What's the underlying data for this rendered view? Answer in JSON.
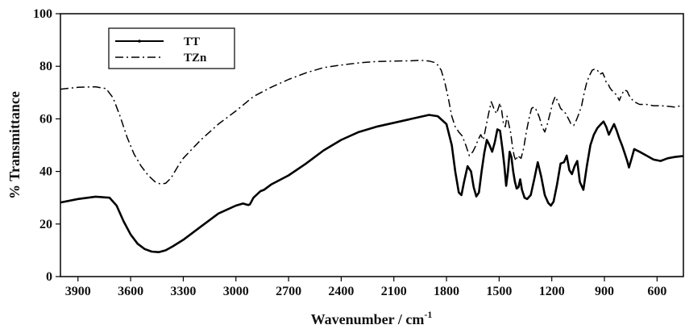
{
  "chart_data": {
    "type": "line",
    "title": "",
    "xlabel": "Wavenumber / cm",
    "xlabel_superscript": "-1",
    "ylabel": "% Transmittance",
    "xlim": [
      4000,
      450
    ],
    "ylim": [
      0,
      100
    ],
    "x_reversed": true,
    "grid": false,
    "legend_position": "top-left",
    "x_ticks": [
      3900,
      3600,
      3300,
      3000,
      2700,
      2400,
      2100,
      1800,
      1500,
      1200,
      900,
      600
    ],
    "y_ticks": [
      0,
      20,
      40,
      60,
      80,
      100
    ],
    "series": [
      {
        "name": "TT",
        "line_style": "solid",
        "color": "#000000",
        "x": [
          4000,
          3900,
          3800,
          3720,
          3680,
          3640,
          3600,
          3560,
          3520,
          3480,
          3440,
          3400,
          3360,
          3300,
          3200,
          3100,
          3000,
          2960,
          2930,
          2920,
          2900,
          2860,
          2840,
          2800,
          2700,
          2600,
          2500,
          2400,
          2300,
          2200,
          2100,
          2000,
          1900,
          1850,
          1800,
          1770,
          1750,
          1730,
          1715,
          1700,
          1680,
          1660,
          1645,
          1630,
          1615,
          1600,
          1585,
          1570,
          1555,
          1540,
          1525,
          1510,
          1495,
          1480,
          1470,
          1460,
          1450,
          1440,
          1430,
          1420,
          1410,
          1400,
          1390,
          1380,
          1370,
          1355,
          1340,
          1320,
          1300,
          1280,
          1260,
          1240,
          1220,
          1205,
          1190,
          1170,
          1150,
          1130,
          1115,
          1100,
          1085,
          1070,
          1055,
          1040,
          1020,
          1000,
          980,
          960,
          940,
          920,
          905,
          890,
          875,
          860,
          845,
          830,
          815,
          800,
          785,
          770,
          760,
          745,
          730,
          700,
          660,
          620,
          580,
          540,
          500,
          460,
          450
        ],
        "y": [
          28.2,
          29.5,
          30.4,
          30.0,
          27.0,
          21.0,
          16.0,
          12.5,
          10.5,
          9.5,
          9.3,
          10.0,
          11.5,
          14.0,
          19.0,
          24.0,
          27.0,
          27.8,
          27.2,
          27.5,
          30.0,
          32.5,
          33.0,
          35.0,
          38.5,
          43.0,
          48.0,
          52.0,
          55.0,
          57.0,
          58.5,
          60.0,
          61.5,
          61.0,
          58.0,
          50.0,
          40.0,
          32.0,
          31.0,
          36.0,
          42.0,
          40.0,
          34.0,
          30.5,
          32.0,
          40.0,
          47.0,
          52.0,
          50.0,
          47.5,
          51.0,
          56.0,
          55.5,
          48.0,
          42.0,
          34.5,
          40.0,
          47.5,
          45.5,
          40.0,
          36.0,
          33.5,
          34.0,
          37.0,
          33.0,
          30.0,
          29.5,
          31.0,
          37.0,
          43.5,
          38.0,
          31.0,
          28.0,
          27.0,
          28.5,
          35.0,
          43.0,
          43.5,
          46.0,
          40.5,
          39.0,
          42.0,
          44.0,
          36.0,
          33.0,
          42.0,
          50.0,
          54.0,
          56.5,
          58.0,
          59.0,
          57.0,
          54.0,
          56.0,
          58.0,
          55.5,
          52.5,
          50.0,
          47.0,
          44.0,
          41.5,
          45.0,
          48.5,
          47.5,
          46.0,
          44.5,
          44.0,
          45.0,
          45.5,
          45.8,
          45.8
        ]
      },
      {
        "name": "TZn",
        "line_style": "dash-dot",
        "color": "#000000",
        "x": [
          4000,
          3900,
          3800,
          3740,
          3700,
          3660,
          3620,
          3580,
          3540,
          3500,
          3460,
          3430,
          3400,
          3370,
          3330,
          3300,
          3200,
          3100,
          3000,
          2900,
          2800,
          2700,
          2600,
          2500,
          2400,
          2300,
          2200,
          2100,
          2000,
          1950,
          1900,
          1870,
          1850,
          1830,
          1810,
          1790,
          1770,
          1750,
          1730,
          1710,
          1690,
          1670,
          1650,
          1635,
          1620,
          1605,
          1590,
          1575,
          1560,
          1545,
          1530,
          1515,
          1505,
          1495,
          1485,
          1475,
          1465,
          1455,
          1445,
          1435,
          1425,
          1415,
          1405,
          1395,
          1385,
          1375,
          1360,
          1345,
          1330,
          1315,
          1300,
          1285,
          1270,
          1255,
          1240,
          1225,
          1210,
          1195,
          1180,
          1165,
          1150,
          1135,
          1120,
          1105,
          1090,
          1075,
          1060,
          1045,
          1030,
          1015,
          1000,
          985,
          970,
          955,
          940,
          925,
          910,
          900,
          890,
          880,
          870,
          860,
          845,
          830,
          815,
          800,
          785,
          770,
          760,
          745,
          730,
          700,
          660,
          620,
          580,
          540,
          500,
          460,
          450
        ],
        "y": [
          71.3,
          72.0,
          72.2,
          71.5,
          68.0,
          61.0,
          53.0,
          46.5,
          42.0,
          38.5,
          36.0,
          35.2,
          35.5,
          37.5,
          42.0,
          45.0,
          52.0,
          58.0,
          63.0,
          68.5,
          72.0,
          75.0,
          77.5,
          79.5,
          80.5,
          81.3,
          81.8,
          82.0,
          82.1,
          82.3,
          82.0,
          81.5,
          80.5,
          78.5,
          74.0,
          68.0,
          61.0,
          57.0,
          55.0,
          53.5,
          50.0,
          46.0,
          47.5,
          49.5,
          52.0,
          54.0,
          52.0,
          57.0,
          62.0,
          66.5,
          64.0,
          62.0,
          64.0,
          66.0,
          63.0,
          58.0,
          57.0,
          61.0,
          58.0,
          55.0,
          50.0,
          46.0,
          44.0,
          46.0,
          45.5,
          45.0,
          49.0,
          55.0,
          60.0,
          64.0,
          64.5,
          63.0,
          60.5,
          57.0,
          55.0,
          58.0,
          62.0,
          66.0,
          68.5,
          66.5,
          64.0,
          63.0,
          62.0,
          60.0,
          58.0,
          57.5,
          59.5,
          62.0,
          65.0,
          70.0,
          74.0,
          76.5,
          78.5,
          79.0,
          78.5,
          77.0,
          77.5,
          76.0,
          74.0,
          73.5,
          72.0,
          71.0,
          70.0,
          69.0,
          67.0,
          69.5,
          71.0,
          70.5,
          69.0,
          67.5,
          66.5,
          65.5,
          65.5,
          65.0,
          65.0,
          64.8,
          64.5,
          65.0,
          64.8
        ]
      }
    ]
  }
}
